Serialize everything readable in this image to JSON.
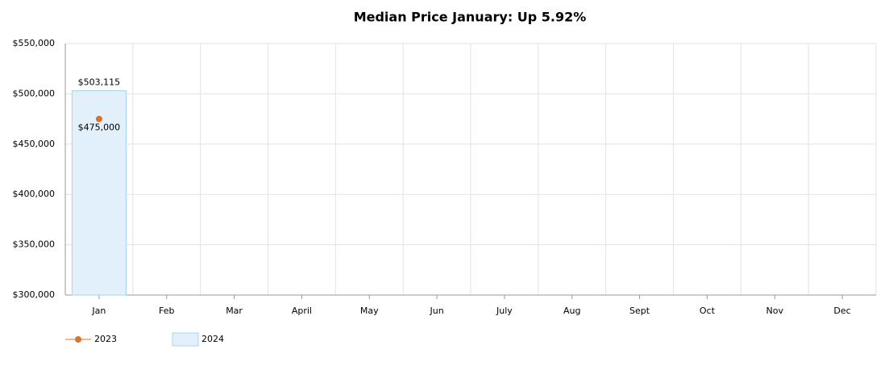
{
  "chart_data": {
    "type": "bar",
    "title": "Median Price January: Up 5.92%",
    "categories": [
      "Jan",
      "Feb",
      "Mar",
      "April",
      "May",
      "Jun",
      "July",
      "Aug",
      "Sept",
      "Oct",
      "Nov",
      "Dec"
    ],
    "series": [
      {
        "name": "2023",
        "type": "line",
        "color": "#d9732e",
        "values": [
          475000,
          null,
          null,
          null,
          null,
          null,
          null,
          null,
          null,
          null,
          null,
          null
        ],
        "value_labels": [
          "$475,000",
          null,
          null,
          null,
          null,
          null,
          null,
          null,
          null,
          null,
          null,
          null
        ]
      },
      {
        "name": "2024",
        "type": "bar",
        "color": "#e1f0fa",
        "values": [
          503115,
          null,
          null,
          null,
          null,
          null,
          null,
          null,
          null,
          null,
          null,
          null
        ],
        "value_labels": [
          "$503,115",
          null,
          null,
          null,
          null,
          null,
          null,
          null,
          null,
          null,
          null,
          null
        ]
      }
    ],
    "ylim": [
      300000,
      550000
    ],
    "yticks": [
      {
        "value": 300000,
        "label": "$300,000"
      },
      {
        "value": 350000,
        "label": "$350,000"
      },
      {
        "value": 400000,
        "label": "$400,000"
      },
      {
        "value": 450000,
        "label": "$450,000"
      },
      {
        "value": 500000,
        "label": "$500,000"
      },
      {
        "value": 550000,
        "label": "$550,000"
      }
    ],
    "grid": true
  }
}
